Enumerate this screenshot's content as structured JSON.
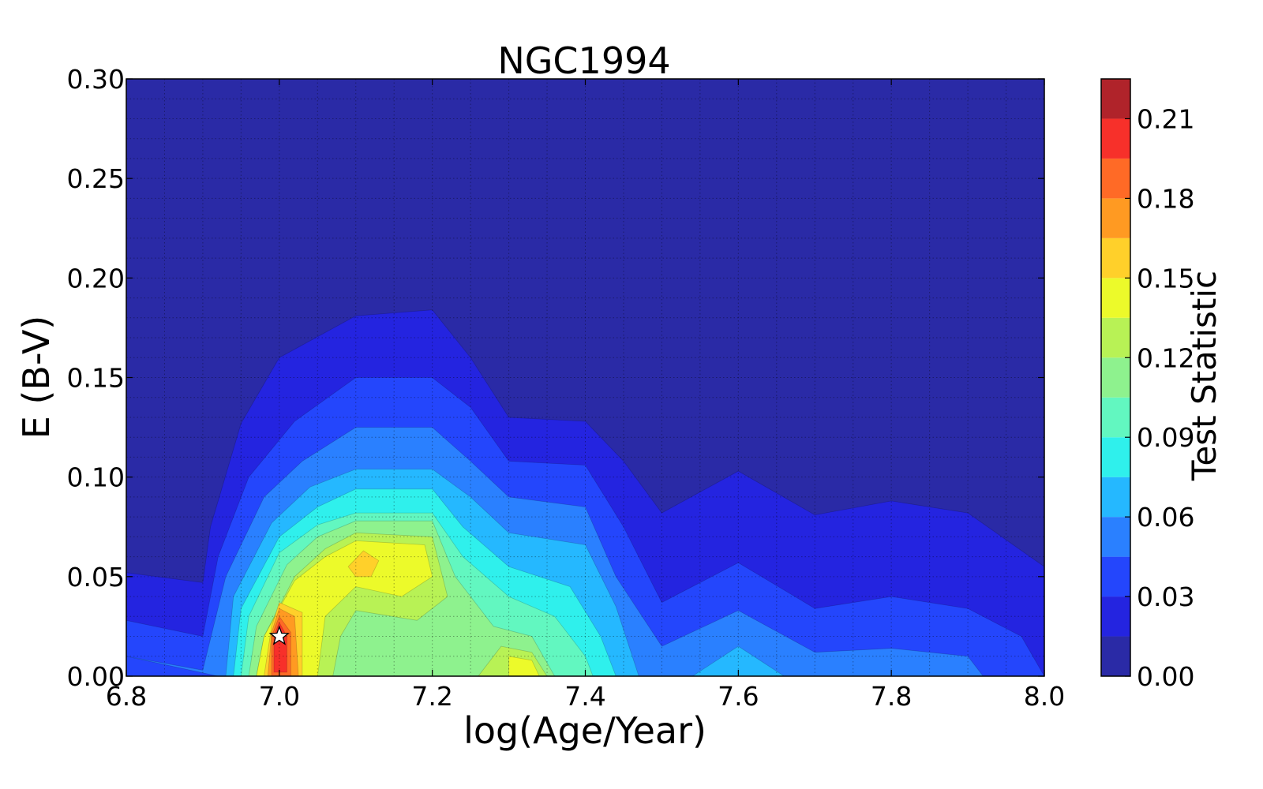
{
  "chart_data": {
    "type": "contour",
    "title": "NGC1994",
    "xlabel": "log(Age/Year)",
    "ylabel": "E (B-V)",
    "colorbar_label": "Test Statistic",
    "xlim": [
      6.8,
      8.0
    ],
    "ylim": [
      0.0,
      0.3
    ],
    "xticks": [
      6.8,
      7.0,
      7.2,
      7.4,
      7.6,
      7.8,
      8.0
    ],
    "xtick_labels": [
      "6.8",
      "7.0",
      "7.2",
      "7.4",
      "7.6",
      "7.8",
      "8.0"
    ],
    "yticks": [
      0.0,
      0.05,
      0.1,
      0.15,
      0.2,
      0.25,
      0.3
    ],
    "ytick_labels": [
      "0.00",
      "0.05",
      "0.10",
      "0.15",
      "0.20",
      "0.25",
      "0.30"
    ],
    "grid": true,
    "colorbar": {
      "levels": [
        0.0,
        0.015,
        0.03,
        0.045,
        0.06,
        0.075,
        0.09,
        0.105,
        0.12,
        0.135,
        0.15,
        0.165,
        0.18,
        0.195,
        0.21,
        0.225
      ],
      "tick_values": [
        0.0,
        0.03,
        0.06,
        0.09,
        0.12,
        0.15,
        0.18,
        0.21
      ],
      "tick_labels": [
        "0.00",
        "0.03",
        "0.06",
        "0.09",
        "0.12",
        "0.15",
        "0.18",
        "0.21"
      ],
      "colors": [
        "#2a2aa6",
        "#2424e0",
        "#2446fc",
        "#2a80ff",
        "#25b8ff",
        "#2ff0ec",
        "#62f7c0",
        "#8ef28e",
        "#b8f255",
        "#ecfa2a",
        "#ffd02a",
        "#ff9a22",
        "#ff6a26",
        "#f7302a",
        "#b0232a"
      ]
    },
    "contour_regions": [
      {
        "level": 0.015,
        "points": [
          [
            6.8,
            0.052
          ],
          [
            6.9,
            0.047
          ],
          [
            6.91,
            0.075
          ],
          [
            6.95,
            0.127
          ],
          [
            7.0,
            0.16
          ],
          [
            7.1,
            0.181
          ],
          [
            7.2,
            0.184
          ],
          [
            7.25,
            0.16
          ],
          [
            7.3,
            0.13
          ],
          [
            7.4,
            0.128
          ],
          [
            7.45,
            0.108
          ],
          [
            7.5,
            0.082
          ],
          [
            7.6,
            0.103
          ],
          [
            7.7,
            0.081
          ],
          [
            7.8,
            0.088
          ],
          [
            7.9,
            0.082
          ],
          [
            8.0,
            0.055
          ],
          [
            8.0,
            0.0
          ],
          [
            6.8,
            0.0
          ]
        ]
      },
      {
        "level": 0.03,
        "points": [
          [
            6.8,
            0.028
          ],
          [
            6.9,
            0.02
          ],
          [
            6.92,
            0.06
          ],
          [
            6.96,
            0.1
          ],
          [
            7.02,
            0.128
          ],
          [
            7.1,
            0.15
          ],
          [
            7.2,
            0.15
          ],
          [
            7.25,
            0.135
          ],
          [
            7.3,
            0.108
          ],
          [
            7.4,
            0.106
          ],
          [
            7.45,
            0.075
          ],
          [
            7.5,
            0.037
          ],
          [
            7.6,
            0.057
          ],
          [
            7.7,
            0.034
          ],
          [
            7.8,
            0.04
          ],
          [
            7.9,
            0.034
          ],
          [
            7.97,
            0.02
          ],
          [
            8.0,
            0.0
          ],
          [
            6.8,
            0.0
          ]
        ]
      },
      {
        "level": 0.045,
        "points": [
          [
            6.8,
            0.01
          ],
          [
            6.9,
            0.003
          ],
          [
            6.93,
            0.05
          ],
          [
            6.98,
            0.09
          ],
          [
            7.03,
            0.108
          ],
          [
            7.1,
            0.125
          ],
          [
            7.2,
            0.125
          ],
          [
            7.25,
            0.108
          ],
          [
            7.3,
            0.09
          ],
          [
            7.4,
            0.085
          ],
          [
            7.44,
            0.05
          ],
          [
            7.5,
            0.015
          ],
          [
            7.6,
            0.033
          ],
          [
            7.7,
            0.012
          ],
          [
            7.8,
            0.014
          ],
          [
            7.9,
            0.01
          ],
          [
            7.92,
            0.0
          ],
          [
            6.92,
            0.0
          ]
        ]
      },
      {
        "level": 0.06,
        "points": [
          [
            6.93,
            0.0
          ],
          [
            6.94,
            0.04
          ],
          [
            6.99,
            0.077
          ],
          [
            7.04,
            0.095
          ],
          [
            7.1,
            0.104
          ],
          [
            7.2,
            0.104
          ],
          [
            7.25,
            0.09
          ],
          [
            7.3,
            0.072
          ],
          [
            7.4,
            0.066
          ],
          [
            7.44,
            0.035
          ],
          [
            7.47,
            0.0
          ]
        ]
      },
      {
        "level": 0.06,
        "points": [
          [
            7.54,
            0.0
          ],
          [
            7.6,
            0.015
          ],
          [
            7.66,
            0.0
          ]
        ]
      },
      {
        "level": 0.075,
        "points": [
          [
            6.94,
            0.0
          ],
          [
            6.95,
            0.034
          ],
          [
            7.0,
            0.07
          ],
          [
            7.05,
            0.085
          ],
          [
            7.1,
            0.094
          ],
          [
            7.2,
            0.094
          ],
          [
            7.24,
            0.075
          ],
          [
            7.3,
            0.055
          ],
          [
            7.38,
            0.045
          ],
          [
            7.42,
            0.02
          ],
          [
            7.44,
            0.0
          ]
        ]
      },
      {
        "level": 0.09,
        "points": [
          [
            6.95,
            0.0
          ],
          [
            6.96,
            0.03
          ],
          [
            7.0,
            0.062
          ],
          [
            7.05,
            0.076
          ],
          [
            7.1,
            0.082
          ],
          [
            7.2,
            0.082
          ],
          [
            7.24,
            0.06
          ],
          [
            7.3,
            0.04
          ],
          [
            7.36,
            0.03
          ],
          [
            7.4,
            0.01
          ],
          [
            7.41,
            0.0
          ]
        ]
      },
      {
        "level": 0.105,
        "points": [
          [
            6.96,
            0.0
          ],
          [
            6.97,
            0.025
          ],
          [
            7.01,
            0.056
          ],
          [
            7.05,
            0.07
          ],
          [
            7.1,
            0.078
          ],
          [
            7.2,
            0.078
          ],
          [
            7.23,
            0.05
          ],
          [
            7.28,
            0.025
          ],
          [
            7.33,
            0.02
          ],
          [
            7.36,
            0.0
          ]
        ]
      },
      {
        "level": 0.12,
        "points": [
          [
            6.97,
            0.0
          ],
          [
            6.98,
            0.02
          ],
          [
            7.02,
            0.05
          ],
          [
            7.06,
            0.064
          ],
          [
            7.1,
            0.072
          ],
          [
            7.2,
            0.07
          ],
          [
            7.22,
            0.04
          ],
          [
            7.18,
            0.028
          ],
          [
            7.1,
            0.033
          ],
          [
            7.08,
            0.02
          ],
          [
            7.07,
            0.0
          ]
        ]
      },
      {
        "level": 0.12,
        "points": [
          [
            7.26,
            0.0
          ],
          [
            7.29,
            0.015
          ],
          [
            7.33,
            0.012
          ],
          [
            7.35,
            0.0
          ]
        ]
      },
      {
        "level": 0.135,
        "points": [
          [
            6.97,
            0.0
          ],
          [
            6.98,
            0.02
          ],
          [
            7.02,
            0.048
          ],
          [
            7.06,
            0.06
          ],
          [
            7.1,
            0.068
          ],
          [
            7.19,
            0.066
          ],
          [
            7.2,
            0.05
          ],
          [
            7.16,
            0.04
          ],
          [
            7.1,
            0.045
          ],
          [
            7.06,
            0.03
          ],
          [
            7.05,
            0.0
          ]
        ]
      },
      {
        "level": 0.135,
        "points": [
          [
            7.3,
            0.0
          ],
          [
            7.3,
            0.01
          ],
          [
            7.33,
            0.008
          ],
          [
            7.34,
            0.0
          ]
        ]
      },
      {
        "level": 0.15,
        "points": [
          [
            6.98,
            0.0
          ],
          [
            6.99,
            0.025
          ],
          [
            7.0,
            0.037
          ],
          [
            7.03,
            0.032
          ],
          [
            7.03,
            0.0
          ]
        ]
      },
      {
        "level": 0.15,
        "points": [
          [
            7.09,
            0.055
          ],
          [
            7.11,
            0.063
          ],
          [
            7.13,
            0.058
          ],
          [
            7.12,
            0.05
          ],
          [
            7.1,
            0.05
          ]
        ]
      },
      {
        "level": 0.165,
        "points": [
          [
            6.985,
            0.0
          ],
          [
            6.99,
            0.022
          ],
          [
            7.0,
            0.034
          ],
          [
            7.02,
            0.03
          ],
          [
            7.025,
            0.0
          ]
        ]
      },
      {
        "level": 0.18,
        "points": [
          [
            6.99,
            0.0
          ],
          [
            6.99,
            0.02
          ],
          [
            7.0,
            0.03
          ],
          [
            7.015,
            0.022
          ],
          [
            7.015,
            0.0
          ]
        ]
      },
      {
        "level": 0.195,
        "points": [
          [
            6.993,
            0.002
          ],
          [
            6.993,
            0.02
          ],
          [
            7.0,
            0.027
          ],
          [
            7.01,
            0.02
          ],
          [
            7.01,
            0.002
          ]
        ]
      }
    ],
    "marker": {
      "symbol": "star",
      "x": 7.0,
      "y": 0.02
    }
  }
}
